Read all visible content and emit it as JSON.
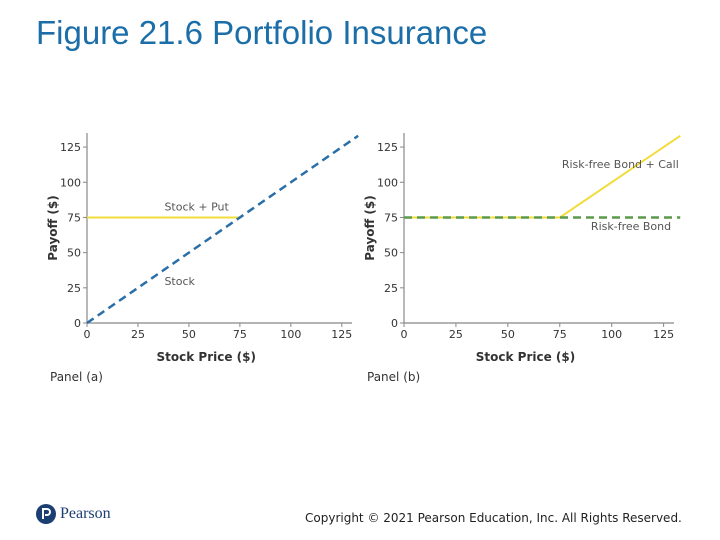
{
  "slide": {
    "title": "Figure 21.6 Portfolio Insurance",
    "copyright": "Copyright © 2021 Pearson Education, Inc. All Rights Reserved.",
    "logo": {
      "text": "Pearson",
      "icon": "pearson-logo-icon",
      "color": "#1b3f73"
    },
    "title_color": "#1b6ea8"
  },
  "colors": {
    "yellow": "#f2dc3c",
    "blue_dash": "#2b6fa8",
    "green_dash": "#5b9a4a",
    "axis": "#888888",
    "text": "#333333"
  },
  "chart_data": [
    {
      "type": "line",
      "panel_label": "Panel (a)",
      "xlabel": "Stock Price ($)",
      "ylabel": "Payoff ($)",
      "xlim": [
        0,
        130
      ],
      "ylim": [
        0,
        135
      ],
      "xticks": [
        0,
        25,
        50,
        75,
        100,
        125
      ],
      "yticks": [
        0,
        25,
        50,
        75,
        100,
        125
      ],
      "series": [
        {
          "name": "Stock + Put",
          "style": "solid",
          "color": "yellow",
          "x": [
            0,
            75
          ],
          "y": [
            75,
            75
          ]
        },
        {
          "name": "Stock",
          "style": "dashed",
          "color": "blue_dash",
          "x": [
            0,
            133
          ],
          "y": [
            0,
            133
          ]
        }
      ],
      "annotations": [
        {
          "text": "Stock + Put",
          "x": 38,
          "y": 80
        },
        {
          "text": "Stock",
          "x": 38,
          "y": 27
        }
      ]
    },
    {
      "type": "line",
      "panel_label": "Panel (b)",
      "xlabel": "Stock Price ($)",
      "ylabel": "Payoff ($)",
      "xlim": [
        0,
        130
      ],
      "ylim": [
        0,
        135
      ],
      "xticks": [
        0,
        25,
        50,
        75,
        100,
        125
      ],
      "yticks": [
        0,
        25,
        50,
        75,
        100,
        125
      ],
      "series": [
        {
          "name": "Risk-free Bond + Call",
          "style": "solid",
          "color": "yellow",
          "x": [
            0,
            75,
            133
          ],
          "y": [
            75,
            75,
            133
          ]
        },
        {
          "name": "Risk-free Bond",
          "style": "dashed",
          "color": "green_dash",
          "x": [
            0,
            133
          ],
          "y": [
            75,
            75
          ]
        }
      ],
      "annotations": [
        {
          "text": "Risk-free Bond + Call",
          "x": 76,
          "y": 110
        },
        {
          "text": "Risk-free Bond",
          "x": 90,
          "y": 66
        }
      ]
    }
  ]
}
